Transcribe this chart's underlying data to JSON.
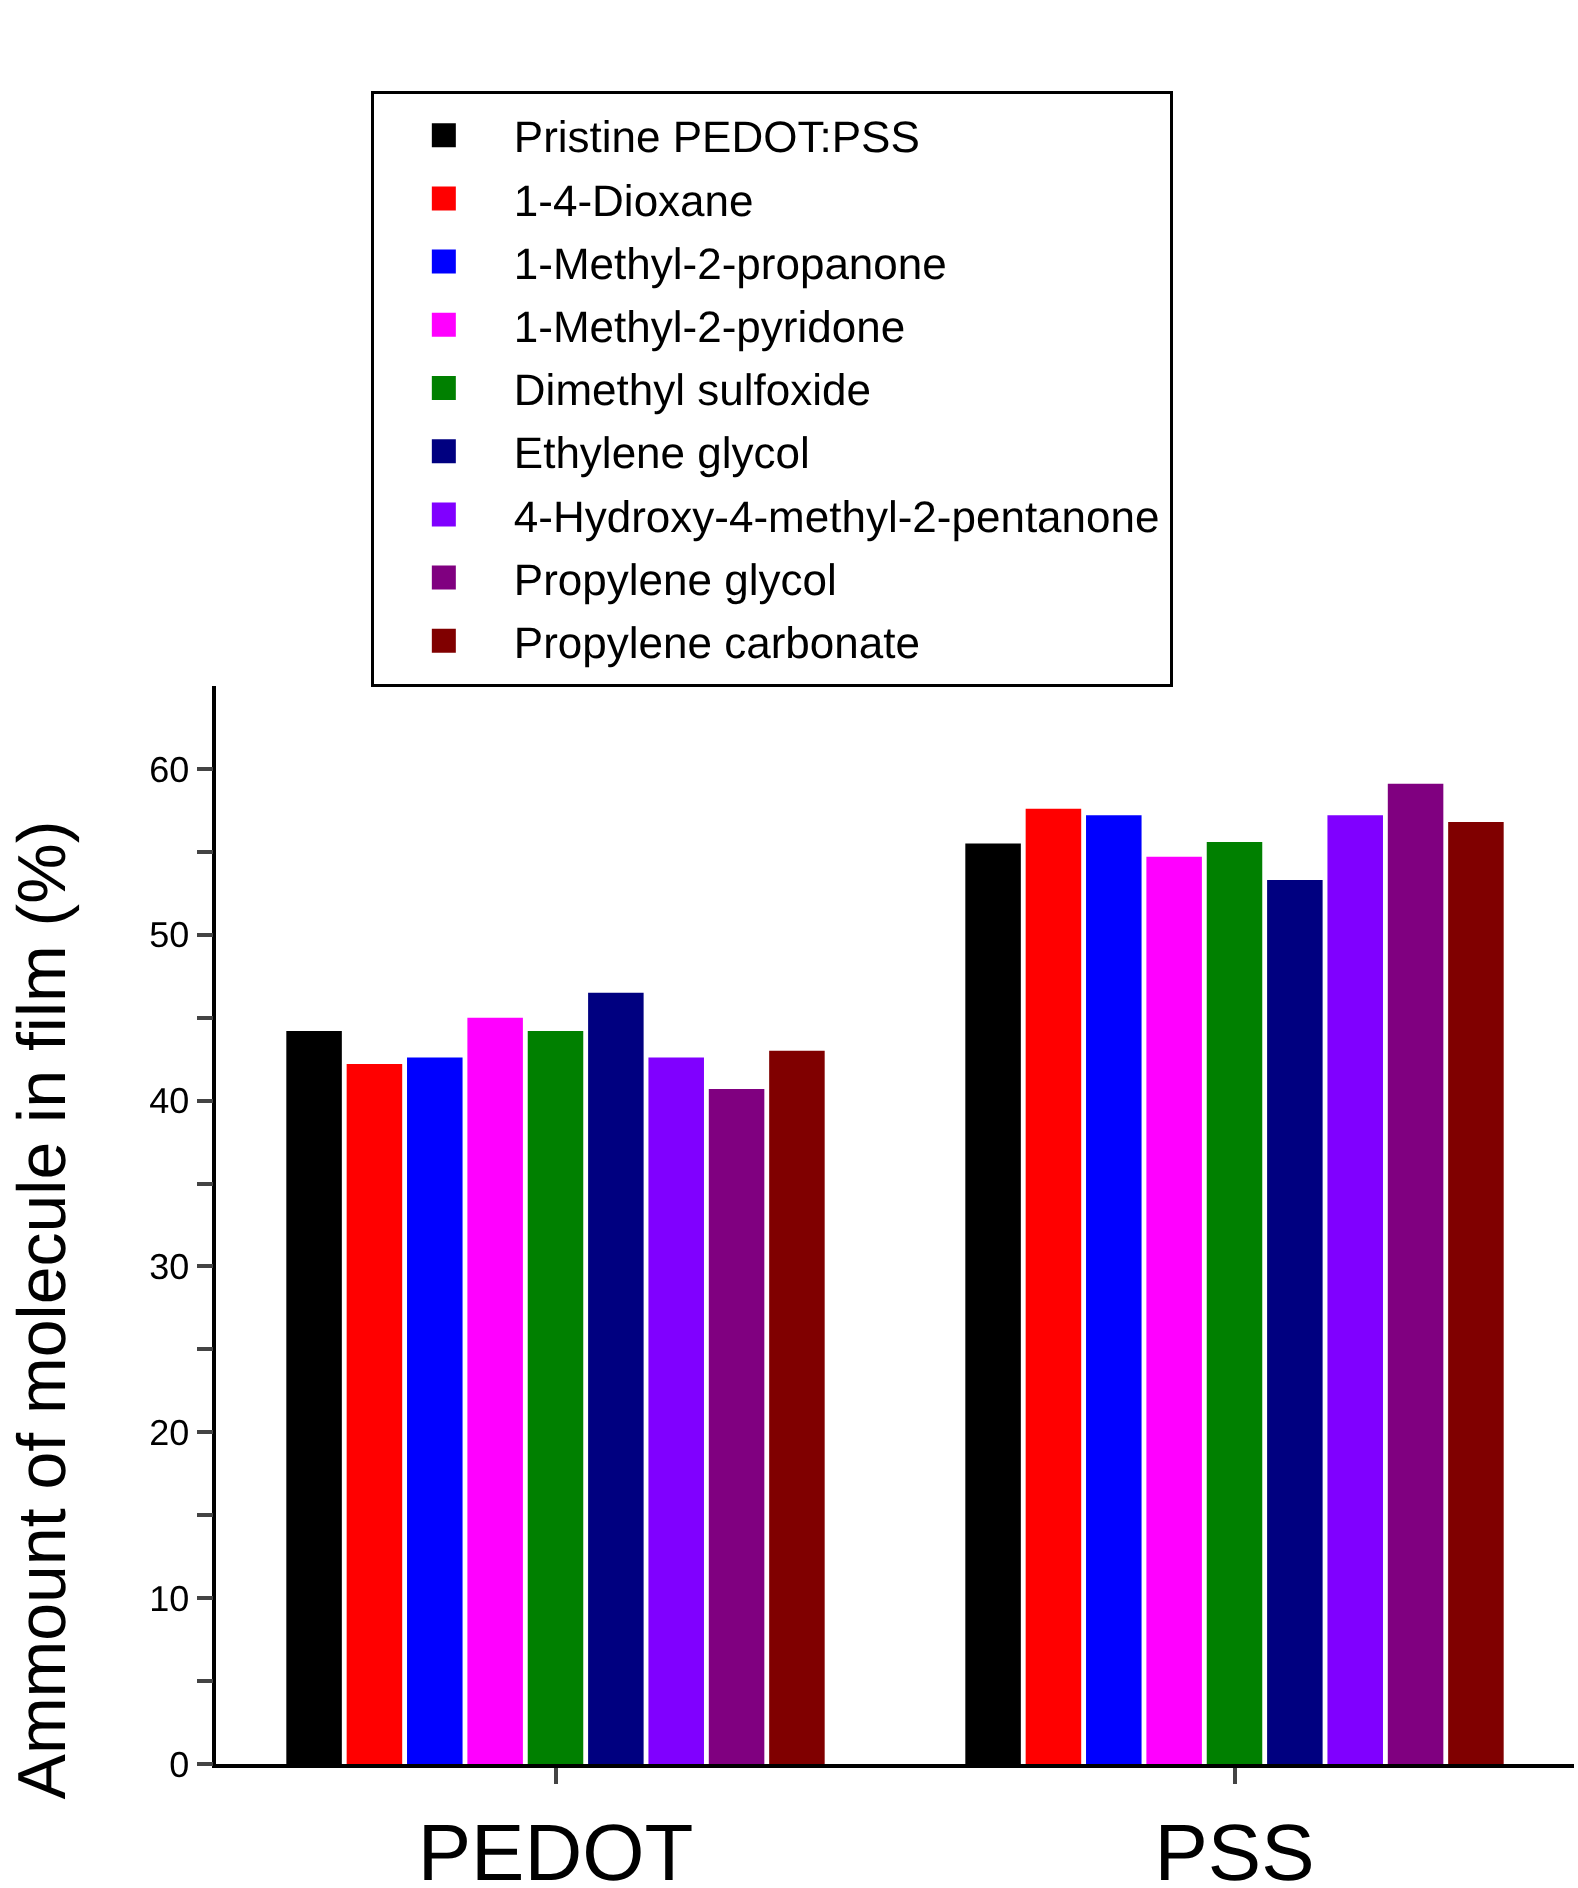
{
  "chart_data": {
    "type": "bar",
    "ylabel": "Ammount of molecule in film (%)",
    "categories": [
      "PEDOT",
      "PSS"
    ],
    "series": [
      {
        "name": "Pristine PEDOT:PSS",
        "color": "#000000",
        "values": [
          44.2,
          55.5
        ]
      },
      {
        "name": "1-4-Dioxane",
        "color": "#ff0000",
        "values": [
          42.2,
          57.6
        ]
      },
      {
        "name": "1-Methyl-2-propanone",
        "color": "#0000ff",
        "values": [
          42.6,
          57.2
        ]
      },
      {
        "name": "1-Methyl-2-pyridone",
        "color": "#ff00ff",
        "values": [
          45.0,
          54.7
        ]
      },
      {
        "name": "Dimethyl sulfoxide",
        "color": "#008000",
        "values": [
          44.2,
          55.6
        ]
      },
      {
        "name": "Ethylene glycol",
        "color": "#000080",
        "values": [
          46.5,
          53.3
        ]
      },
      {
        "name": "4-Hydroxy-4-methyl-2-pentanone",
        "color": "#8000ff",
        "values": [
          42.6,
          57.2
        ]
      },
      {
        "name": "Propylene glycol",
        "color": "#800080",
        "values": [
          40.7,
          59.1
        ]
      },
      {
        "name": "Propylene carbonate",
        "color": "#800000",
        "values": [
          43.0,
          56.8
        ]
      }
    ],
    "ylim": [
      0,
      65
    ],
    "yticks": [
      0,
      {
        "value": 5,
        "label": null
      },
      10,
      {
        "value": 15,
        "label": null
      },
      20,
      {
        "value": 25,
        "label": null
      },
      30,
      {
        "value": 35,
        "label": null
      },
      40,
      {
        "value": 45,
        "label": null
      },
      50,
      {
        "value": 55,
        "label": null
      },
      60
    ],
    "grid": false,
    "legend": "top"
  }
}
